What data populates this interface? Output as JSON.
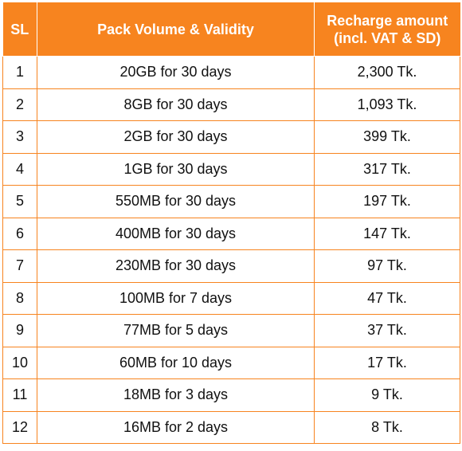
{
  "table": {
    "headers": {
      "sl": "SL",
      "pack": "Pack Volume & Validity",
      "amount_line1": "Recharge amount",
      "amount_line2": "(incl. VAT & SD)"
    },
    "rows": [
      {
        "sl": "1",
        "pack": "20GB for 30 days",
        "amount": "2,300 Tk."
      },
      {
        "sl": "2",
        "pack": "8GB for 30 days",
        "amount": "1,093 Tk."
      },
      {
        "sl": "3",
        "pack": "2GB for 30 days",
        "amount": "399 Tk."
      },
      {
        "sl": "4",
        "pack": "1GB for 30 days",
        "amount": "317 Tk."
      },
      {
        "sl": "5",
        "pack": "550MB for 30 days",
        "amount": "197 Tk."
      },
      {
        "sl": "6",
        "pack": "400MB for 30 days",
        "amount": "147 Tk."
      },
      {
        "sl": "7",
        "pack": "230MB for 30 days",
        "amount": "97 Tk."
      },
      {
        "sl": "8",
        "pack": "100MB for 7 days",
        "amount": "47 Tk."
      },
      {
        "sl": "9",
        "pack": "77MB for 5 days",
        "amount": "37 Tk."
      },
      {
        "sl": "10",
        "pack": "60MB for 10 days",
        "amount": "17 Tk."
      },
      {
        "sl": "11",
        "pack": "18MB for 3 days",
        "amount": "9 Tk."
      },
      {
        "sl": "12",
        "pack": "16MB for 2 days",
        "amount": "8 Tk."
      }
    ]
  },
  "colors": {
    "header_background": "#f7841f",
    "header_text": "#ffffff",
    "border": "#f7841f",
    "body_text": "#111111"
  }
}
